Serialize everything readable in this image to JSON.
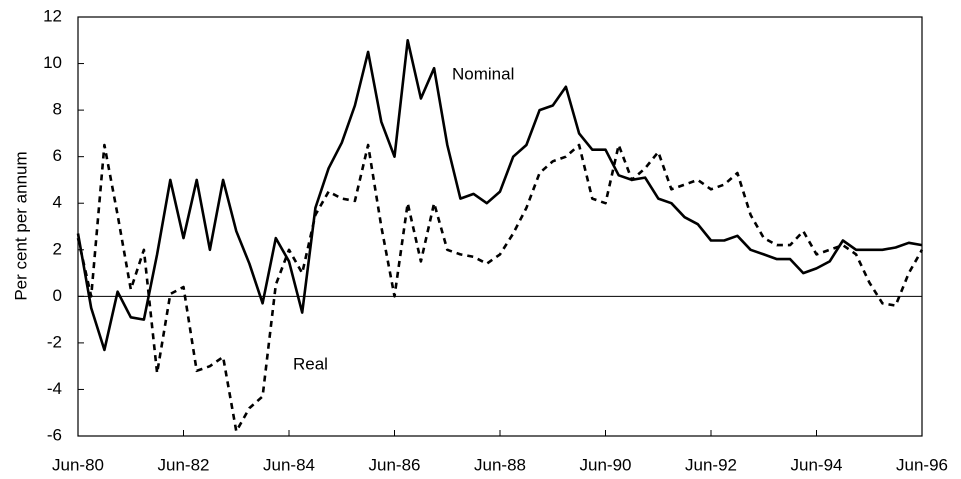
{
  "chart_data": {
    "type": "line",
    "ylabel": "Per cent per annum",
    "categories": [
      "Jun-80",
      null,
      null,
      null,
      null,
      null,
      null,
      null,
      "Jun-82",
      null,
      null,
      null,
      null,
      null,
      null,
      null,
      "Jun-84",
      null,
      null,
      null,
      null,
      null,
      null,
      null,
      "Jun-86",
      null,
      null,
      null,
      null,
      null,
      null,
      null,
      "Jun-88",
      null,
      null,
      null,
      null,
      null,
      null,
      null,
      "Jun-90",
      null,
      null,
      null,
      null,
      null,
      null,
      null,
      "Jun-92",
      null,
      null,
      null,
      null,
      null,
      null,
      null,
      "Jun-94",
      null,
      null,
      null,
      null,
      null,
      null,
      null,
      "Jun-96"
    ],
    "series": [
      {
        "name": "Nominal",
        "color": "#000000",
        "dash": "solid",
        "values": [
          2.7,
          -0.5,
          -2.3,
          0.2,
          -0.9,
          -1.0,
          1.8,
          5.0,
          2.5,
          5.0,
          2.0,
          5.0,
          2.8,
          1.4,
          -0.3,
          2.5,
          1.5,
          -0.7,
          3.8,
          5.5,
          6.6,
          8.2,
          10.5,
          7.5,
          6.0,
          11.0,
          8.5,
          9.8,
          6.5,
          4.2,
          4.4,
          4.0,
          4.5,
          6.0,
          6.5,
          8.0,
          8.2,
          9.0,
          7.0,
          6.3,
          6.3,
          5.2,
          5.0,
          5.1,
          4.2,
          4.0,
          3.4,
          3.1,
          2.4,
          2.4,
          2.6,
          2.0,
          1.8,
          1.6,
          1.6,
          1.0,
          1.2,
          1.5,
          2.4,
          2.0,
          2.0,
          2.0,
          2.1,
          2.3,
          2.2
        ]
      },
      {
        "name": "Real",
        "color": "#000000",
        "dash": "dashed",
        "values": [
          2.5,
          0.0,
          6.5,
          3.5,
          0.3,
          2.0,
          -3.3,
          0.1,
          0.4,
          -3.2,
          -3.0,
          -2.6,
          -5.8,
          -4.8,
          -4.3,
          0.5,
          2.0,
          1.0,
          3.5,
          4.5,
          4.2,
          4.1,
          6.5,
          3.0,
          0.0,
          4.0,
          1.5,
          4.0,
          2.0,
          1.8,
          1.7,
          1.4,
          1.8,
          2.7,
          3.8,
          5.3,
          5.8,
          6.0,
          6.5,
          4.2,
          4.0,
          6.5,
          5.0,
          5.5,
          6.2,
          4.6,
          4.8,
          5.0,
          4.6,
          4.8,
          5.3,
          3.5,
          2.5,
          2.2,
          2.2,
          2.8,
          1.8,
          2.0,
          2.2,
          1.8,
          0.6,
          -0.3,
          -0.4,
          1.0,
          2.0
        ]
      }
    ],
    "ylim": [
      -6,
      12
    ],
    "yticks": [
      -6,
      -4,
      -2,
      0,
      2,
      4,
      6,
      8,
      10,
      12
    ],
    "grid": false
  }
}
